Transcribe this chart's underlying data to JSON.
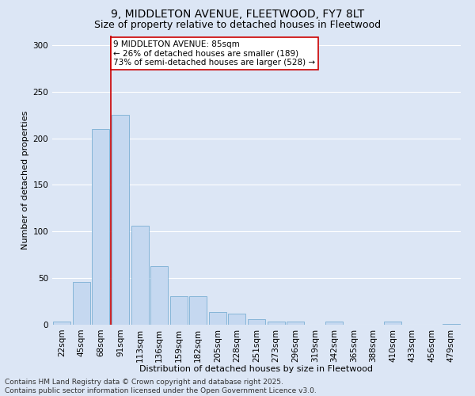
{
  "title_line1": "9, MIDDLETON AVENUE, FLEETWOOD, FY7 8LT",
  "title_line2": "Size of property relative to detached houses in Fleetwood",
  "xlabel": "Distribution of detached houses by size in Fleetwood",
  "ylabel": "Number of detached properties",
  "categories": [
    "22sqm",
    "45sqm",
    "68sqm",
    "91sqm",
    "113sqm",
    "136sqm",
    "159sqm",
    "182sqm",
    "205sqm",
    "228sqm",
    "251sqm",
    "273sqm",
    "296sqm",
    "319sqm",
    "342sqm",
    "365sqm",
    "388sqm",
    "410sqm",
    "433sqm",
    "456sqm",
    "479sqm"
  ],
  "values": [
    3,
    46,
    210,
    225,
    106,
    63,
    31,
    31,
    14,
    12,
    6,
    3,
    3,
    0,
    3,
    0,
    0,
    3,
    0,
    0,
    1
  ],
  "bar_color": "#c5d8f0",
  "bar_edge_color": "#7aafd4",
  "background_color": "#dce6f5",
  "grid_color": "#ffffff",
  "vline_index": 3,
  "vline_color": "#cc0000",
  "annotation_text": "9 MIDDLETON AVENUE: 85sqm\n← 26% of detached houses are smaller (189)\n73% of semi-detached houses are larger (528) →",
  "annotation_box_color": "#ffffff",
  "annotation_box_edge": "#cc0000",
  "ylim": [
    0,
    310
  ],
  "yticks": [
    0,
    50,
    100,
    150,
    200,
    250,
    300
  ],
  "footer_line1": "Contains HM Land Registry data © Crown copyright and database right 2025.",
  "footer_line2": "Contains public sector information licensed under the Open Government Licence v3.0.",
  "title_fontsize": 10,
  "subtitle_fontsize": 9,
  "axis_label_fontsize": 8,
  "tick_fontsize": 7.5,
  "annotation_fontsize": 7.5,
  "footer_fontsize": 6.5
}
